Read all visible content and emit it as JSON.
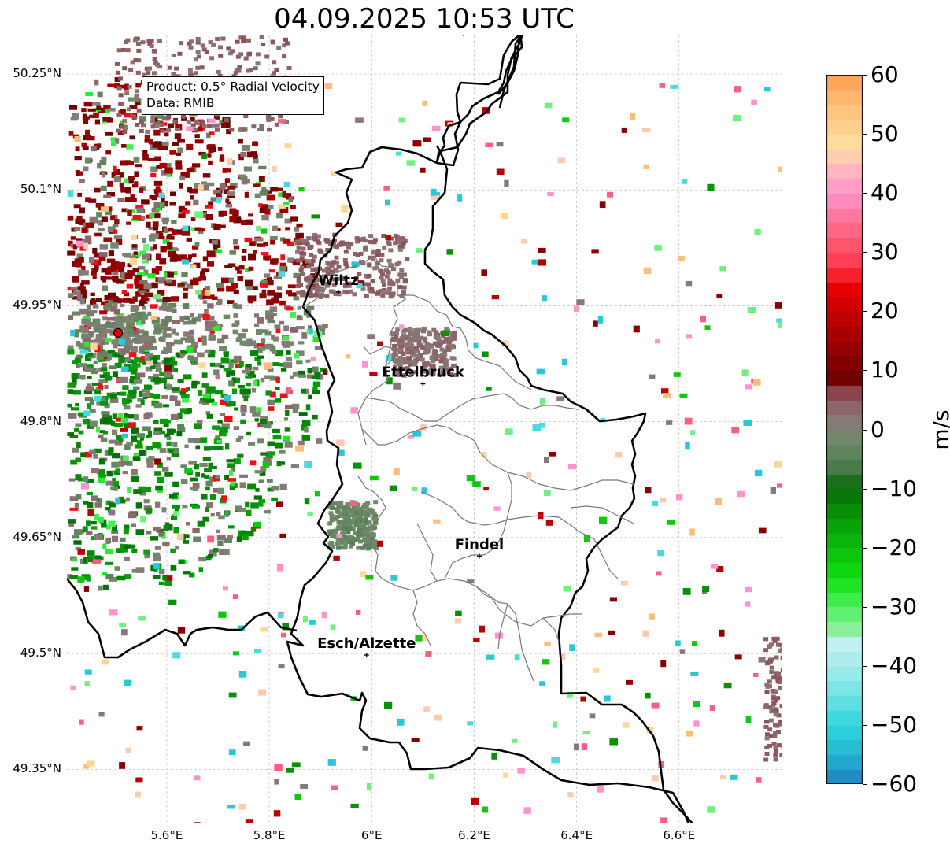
{
  "title": "04.09.2025 10:53 UTC",
  "info_box": {
    "product": "Product: 0.5° Radial Velocity",
    "data": "Data: RMIB"
  },
  "map_extent": {
    "lon_min": 5.405,
    "lon_max": 6.8,
    "lat_min": 49.28,
    "lat_max": 50.3
  },
  "lat_ticks": [
    {
      "value": 50.25,
      "label": "50.25°N"
    },
    {
      "value": 50.1,
      "label": "50.1°N"
    },
    {
      "value": 49.95,
      "label": "49.95°N"
    },
    {
      "value": 49.8,
      "label": "49.8°N"
    },
    {
      "value": 49.65,
      "label": "49.65°N"
    },
    {
      "value": 49.5,
      "label": "49.5°N"
    },
    {
      "value": 49.35,
      "label": "49.35°N"
    }
  ],
  "lon_ticks": [
    {
      "value": 5.6,
      "label": "5.6°E"
    },
    {
      "value": 5.8,
      "label": "5.8°E"
    },
    {
      "value": 6.0,
      "label": "6°E"
    },
    {
      "value": 6.2,
      "label": "6.2°E"
    },
    {
      "value": 6.4,
      "label": "6.4°E"
    },
    {
      "value": 6.6,
      "label": "6.6°E"
    }
  ],
  "radar_site": {
    "lon": 5.505,
    "lat": 49.915,
    "color": "#e00000"
  },
  "cities": [
    {
      "name": "Wiltz",
      "lon": 5.935,
      "lat": 49.968
    },
    {
      "name": "Ettelbruck",
      "lon": 6.1,
      "lat": 49.849
    },
    {
      "name": "Findel",
      "lon": 6.21,
      "lat": 49.626
    },
    {
      "name": "Esch/Alzette",
      "lon": 5.99,
      "lat": 49.498
    }
  ],
  "colorbar": {
    "unit": "m/s",
    "min": -60,
    "max": 60,
    "ticks": [
      {
        "value": 60,
        "label": "60"
      },
      {
        "value": 50,
        "label": "50"
      },
      {
        "value": 40,
        "label": "40"
      },
      {
        "value": 30,
        "label": "30"
      },
      {
        "value": 20,
        "label": "20"
      },
      {
        "value": 10,
        "label": "10"
      },
      {
        "value": 0,
        "label": "0"
      },
      {
        "value": -10,
        "label": "−10"
      },
      {
        "value": -20,
        "label": "−20"
      },
      {
        "value": -30,
        "label": "−30"
      },
      {
        "value": -40,
        "label": "−40"
      },
      {
        "value": -50,
        "label": "−50"
      },
      {
        "value": -60,
        "label": "−60"
      }
    ],
    "stops": [
      {
        "value": -60,
        "color": "#1f7fc2"
      },
      {
        "value": -55,
        "color": "#24b4d0"
      },
      {
        "value": -50,
        "color": "#2ed6dc"
      },
      {
        "value": -45,
        "color": "#6ee3e3"
      },
      {
        "value": -40,
        "color": "#a4ecec"
      },
      {
        "value": -36,
        "color": "#c2f0f0"
      },
      {
        "value": -34,
        "color": "#8ff0a0"
      },
      {
        "value": -30,
        "color": "#4ef060"
      },
      {
        "value": -25,
        "color": "#10e010"
      },
      {
        "value": -20,
        "color": "#0cbc0c"
      },
      {
        "value": -15,
        "color": "#079a07"
      },
      {
        "value": -10,
        "color": "#056b05"
      },
      {
        "value": -6,
        "color": "#4c7c4c"
      },
      {
        "value": -2,
        "color": "#6f8a6a"
      },
      {
        "value": 2,
        "color": "#8a7878"
      },
      {
        "value": 6,
        "color": "#8e4e56"
      },
      {
        "value": 8,
        "color": "#6c0000"
      },
      {
        "value": 15,
        "color": "#9e0000"
      },
      {
        "value": 24,
        "color": "#e80000"
      },
      {
        "value": 28,
        "color": "#ff3b50"
      },
      {
        "value": 35,
        "color": "#ff6e90"
      },
      {
        "value": 40,
        "color": "#ff93cc"
      },
      {
        "value": 44,
        "color": "#ffb7c0"
      },
      {
        "value": 48,
        "color": "#ffdfa0"
      },
      {
        "value": 55,
        "color": "#ffbe78"
      },
      {
        "value": 60,
        "color": "#ff9e54"
      }
    ]
  }
}
